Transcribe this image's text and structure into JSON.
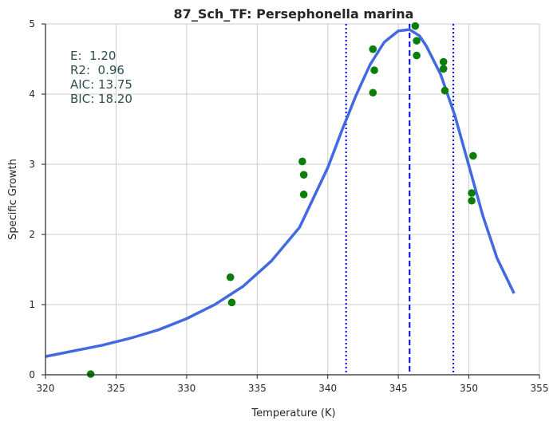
{
  "chart_data": {
    "type": "scatter",
    "title": "87_Sch_TF: Persephonella marina",
    "xlabel": "Temperature (K)",
    "ylabel": "Specific Growth",
    "xlim": [
      320,
      355
    ],
    "ylim": [
      0,
      5
    ],
    "xticks": [
      "320",
      "325",
      "330",
      "335",
      "340",
      "345",
      "350",
      "355"
    ],
    "yticks": [
      "0",
      "1",
      "2",
      "3",
      "4",
      "5"
    ],
    "grid": true,
    "annotations": [
      "E:  1.20",
      "R2:  0.96",
      "AIC: 13.75",
      "BIC: 18.20"
    ],
    "points": [
      {
        "x": 323.2,
        "y": 0.01
      },
      {
        "x": 333.1,
        "y": 1.39
      },
      {
        "x": 333.2,
        "y": 1.03
      },
      {
        "x": 338.2,
        "y": 3.04
      },
      {
        "x": 338.3,
        "y": 2.85
      },
      {
        "x": 338.3,
        "y": 2.57
      },
      {
        "x": 343.2,
        "y": 4.64
      },
      {
        "x": 343.3,
        "y": 4.34
      },
      {
        "x": 343.2,
        "y": 4.02
      },
      {
        "x": 346.2,
        "y": 4.97
      },
      {
        "x": 346.3,
        "y": 4.76
      },
      {
        "x": 346.3,
        "y": 4.55
      },
      {
        "x": 348.2,
        "y": 4.46
      },
      {
        "x": 348.2,
        "y": 4.36
      },
      {
        "x": 348.3,
        "y": 4.05
      },
      {
        "x": 350.3,
        "y": 3.12
      },
      {
        "x": 350.2,
        "y": 2.59
      },
      {
        "x": 350.2,
        "y": 2.48
      }
    ],
    "fit_curve": {
      "x": [
        320,
        322,
        324,
        326,
        328,
        330,
        332,
        334,
        336,
        338,
        340,
        341,
        342,
        343,
        344,
        345,
        345.8,
        346.5,
        347,
        348,
        349,
        350,
        351,
        352,
        353.2
      ],
      "y": [
        0.26,
        0.34,
        0.42,
        0.52,
        0.64,
        0.8,
        1.0,
        1.26,
        1.62,
        2.1,
        2.95,
        3.48,
        3.98,
        4.42,
        4.74,
        4.9,
        4.92,
        4.83,
        4.68,
        4.28,
        3.7,
        2.98,
        2.26,
        1.66,
        1.16
      ]
    },
    "vlines": [
      {
        "x": 345.8,
        "style": "dashed",
        "color": "#0000ee"
      },
      {
        "x": 341.3,
        "style": "dotted",
        "color": "#0000ee"
      },
      {
        "x": 348.9,
        "style": "dotted",
        "color": "#0000ee"
      }
    ],
    "colors": {
      "points": "#0a7d0a",
      "curve": "#4169e1",
      "grid": "#cccccc",
      "annotation": "#2f4f4f"
    }
  }
}
